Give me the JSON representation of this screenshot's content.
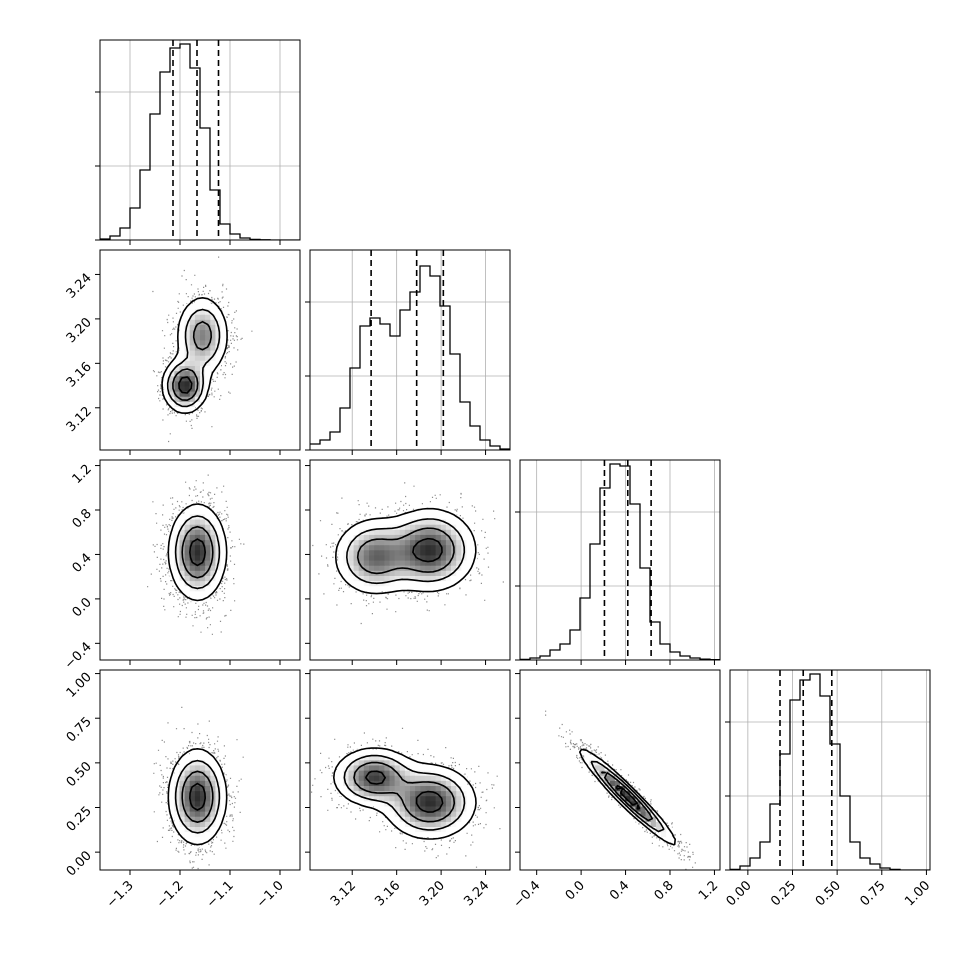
{
  "chart_data": {
    "type": "corner",
    "n_params": 4,
    "params": [
      {
        "range": [
          -1.36,
          -0.96
        ],
        "ticks": [
          -1.3,
          -1.2,
          -1.1,
          -1.0
        ],
        "tick_labels": [
          "−1.3",
          "−1.2",
          "−1.1",
          "−1.0"
        ],
        "quantiles": [
          -1.214,
          -1.166,
          -1.123
        ],
        "mean": -1.165,
        "sd": 0.028,
        "hist": [
          0.005,
          0.02,
          0.06,
          0.16,
          0.35,
          0.63,
          0.84,
          0.96,
          0.98,
          0.86,
          0.56,
          0.25,
          0.08,
          0.03,
          0.01,
          0.003,
          0.001,
          0,
          0,
          0
        ]
      },
      {
        "range": [
          3.082,
          3.262
        ],
        "ticks": [
          3.12,
          3.16,
          3.2,
          3.24
        ],
        "tick_labels": [
          "3.12",
          "3.16",
          "3.20",
          "3.24"
        ],
        "quantiles": [
          3.137,
          3.178,
          3.202
        ],
        "hist": [
          0.03,
          0.05,
          0.09,
          0.21,
          0.41,
          0.62,
          0.66,
          0.63,
          0.57,
          0.7,
          0.79,
          0.92,
          0.87,
          0.72,
          0.48,
          0.24,
          0.12,
          0.05,
          0.02,
          0.005
        ]
      },
      {
        "range": [
          -0.55,
          1.25
        ],
        "ticks": [
          -0.4,
          0.0,
          0.4,
          0.8,
          1.2
        ],
        "tick_labels": [
          "−0.4",
          "0.0",
          "0.4",
          "0.8",
          "1.2"
        ],
        "quantiles": [
          0.21,
          0.42,
          0.63
        ],
        "mean": 0.42,
        "sd": 0.21,
        "hist": [
          0.003,
          0.01,
          0.02,
          0.05,
          0.08,
          0.15,
          0.31,
          0.58,
          0.86,
          0.98,
          0.97,
          0.78,
          0.46,
          0.19,
          0.08,
          0.04,
          0.02,
          0.01,
          0.004,
          0.002
        ]
      },
      {
        "range": [
          -0.1,
          1.02
        ],
        "ticks": [
          0.0,
          0.25,
          0.5,
          0.75,
          1.0
        ],
        "tick_labels": [
          "0.00",
          "0.25",
          "0.50",
          "0.75",
          "1.00"
        ],
        "quantiles": [
          0.18,
          0.31,
          0.47
        ],
        "mean": 0.31,
        "sd": 0.13,
        "hist": [
          0.003,
          0.02,
          0.06,
          0.14,
          0.33,
          0.58,
          0.85,
          0.95,
          0.98,
          0.87,
          0.63,
          0.37,
          0.14,
          0.06,
          0.03,
          0.01,
          0.003,
          0,
          0,
          0
        ]
      }
    ],
    "pairs": [
      {
        "row": 1,
        "col": 0,
        "type": "bimodal",
        "modes": [
          {
            "w": 0.55,
            "x": -1.155,
            "y": 3.185,
            "sx": 0.026,
            "sy": 0.018
          },
          {
            "w": 0.45,
            "x": -1.19,
            "y": 3.14,
            "sx": 0.022,
            "sy": 0.012
          }
        ]
      },
      {
        "row": 2,
        "col": 0,
        "type": "gauss",
        "x": -1.165,
        "y": 0.42,
        "sx": 0.028,
        "sy": 0.21,
        "rho": 0.0
      },
      {
        "row": 2,
        "col": 1,
        "type": "bimodal",
        "modes": [
          {
            "w": 0.6,
            "x": 3.19,
            "y": 0.44,
            "sx": 0.02,
            "sy": 0.18
          },
          {
            "w": 0.4,
            "x": 3.14,
            "y": 0.38,
            "sx": 0.018,
            "sy": 0.17
          }
        ]
      },
      {
        "row": 3,
        "col": 0,
        "type": "gauss",
        "x": -1.165,
        "y": 0.31,
        "sx": 0.028,
        "sy": 0.13,
        "rho": 0.0
      },
      {
        "row": 3,
        "col": 1,
        "type": "bimodal",
        "modes": [
          {
            "w": 0.6,
            "x": 3.19,
            "y": 0.28,
            "sx": 0.02,
            "sy": 0.1
          },
          {
            "w": 0.4,
            "x": 3.14,
            "y": 0.42,
            "sx": 0.018,
            "sy": 0.08
          }
        ]
      },
      {
        "row": 3,
        "col": 2,
        "type": "gauss",
        "x": 0.42,
        "y": 0.31,
        "sx": 0.21,
        "sy": 0.13,
        "rho": -0.96
      }
    ],
    "contour_levels": 4,
    "grid": true
  }
}
